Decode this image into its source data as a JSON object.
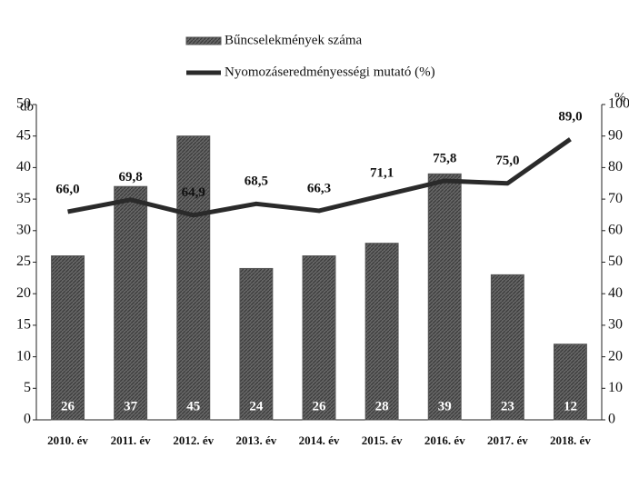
{
  "chart_data": {
    "type": "bar-line",
    "categories": [
      "2010. év",
      "2011. év",
      "2012. év",
      "2013. év",
      "2014. év",
      "2015. év",
      "2016. év",
      "2017. év",
      "2018. év"
    ],
    "series": [
      {
        "name": "Bűncselekmények száma",
        "type": "bar",
        "color": "#555555",
        "values": [
          26,
          37,
          45,
          24,
          26,
          28,
          39,
          23,
          12
        ]
      },
      {
        "name": "Nyomozáseredményességi mutató (%)",
        "type": "line",
        "axis": "y2",
        "color": "#2a2a2a",
        "values": [
          66.0,
          69.8,
          64.9,
          68.5,
          66.3,
          71.1,
          75.8,
          75.0,
          89.0
        ],
        "value_labels": [
          "66,0",
          "69,8",
          "64,9",
          "68,5",
          "66,3",
          "71,1",
          "75,8",
          "75,0",
          "89,0"
        ]
      }
    ],
    "ylabel": "db",
    "y2label": "%",
    "ylim": [
      0,
      50
    ],
    "yticks": [
      0,
      5,
      10,
      15,
      20,
      25,
      30,
      35,
      40,
      45,
      50
    ],
    "y2lim": [
      0,
      100
    ],
    "y2ticks": [
      0,
      10,
      20,
      30,
      40,
      50,
      60,
      70,
      80,
      90,
      100
    ],
    "legend": "top"
  }
}
